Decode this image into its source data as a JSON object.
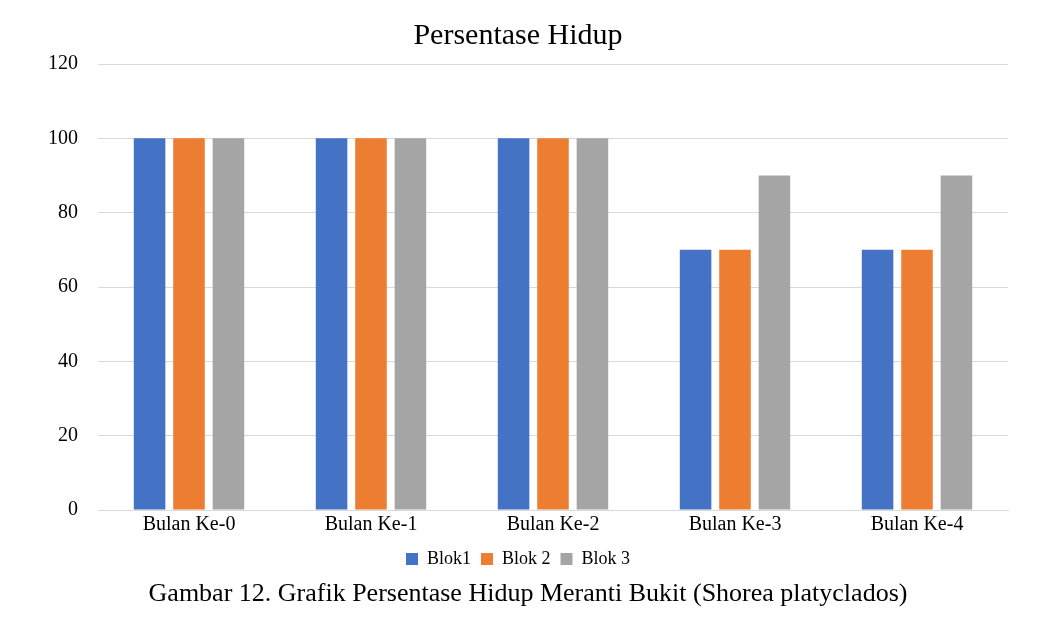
{
  "chart_data": {
    "type": "bar",
    "title": "Persentase Hidup",
    "categories": [
      "Bulan Ke-0",
      "Bulan Ke-1",
      "Bulan Ke-2",
      "Bulan Ke-3",
      "Bulan Ke-4"
    ],
    "series": [
      {
        "name": "Blok1",
        "color": "#4472c4",
        "values": [
          100,
          100,
          100,
          70,
          70
        ]
      },
      {
        "name": "Blok 2",
        "color": "#ed7d31",
        "values": [
          100,
          100,
          100,
          70,
          70
        ]
      },
      {
        "name": "Blok 3",
        "color": "#a5a5a5",
        "values": [
          100,
          100,
          100,
          90,
          90
        ]
      }
    ],
    "ylim": [
      0,
      120
    ],
    "yticks": [
      0,
      20,
      40,
      60,
      80,
      100,
      120
    ],
    "grid": "y",
    "legend": "bottom",
    "annotations": [
      "Gambar 12. Grafik Persentase Hidup Meranti Bukit (Shorea platyclados)"
    ]
  }
}
